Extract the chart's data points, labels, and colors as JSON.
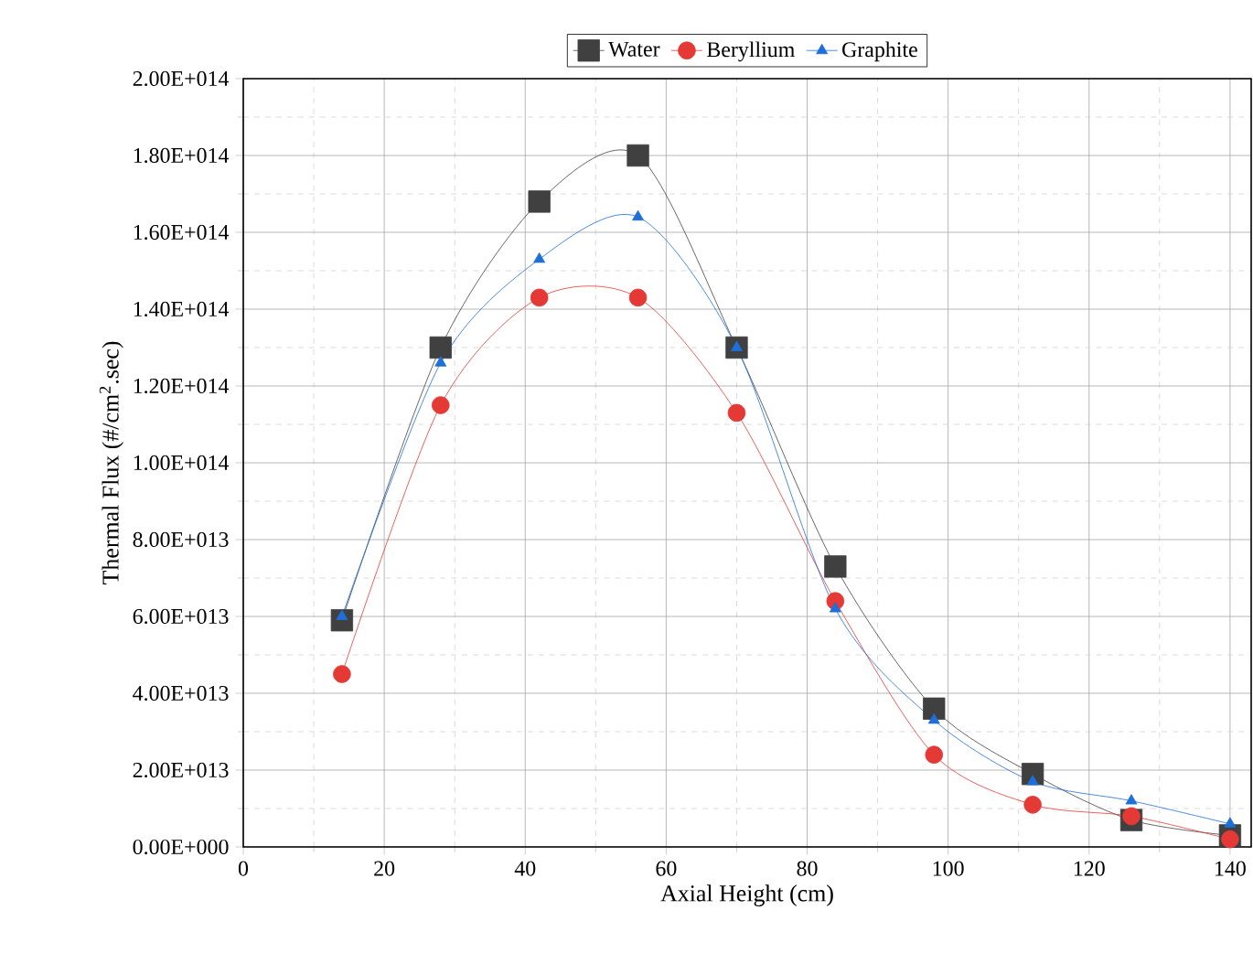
{
  "chart_data": {
    "type": "line",
    "xlabel": "Axial Height (cm)",
    "ylabel": "Thermal Flux (#/cm$^{2}$.sec)",
    "x": [
      14,
      28,
      42,
      56,
      70,
      84,
      98,
      112,
      126,
      140
    ],
    "series": [
      {
        "name": "Water",
        "color": "#404040",
        "marker": "square",
        "values": [
          59000000000000.0,
          130000000000000.0,
          168000000000000.0,
          180000000000000.0,
          130000000000000.0,
          73000000000000.0,
          36000000000000.0,
          19000000000000.0,
          7000000000000.0,
          3000000000000.0
        ]
      },
      {
        "name": "Beryllium",
        "color": "#e53935",
        "marker": "circle",
        "values": [
          45000000000000.0,
          115000000000000.0,
          143000000000000.0,
          143000000000000.0,
          113000000000000.0,
          64000000000000.0,
          24000000000000.0,
          11000000000000.0,
          8000000000000.0,
          2000000000000.0
        ]
      },
      {
        "name": "Graphite",
        "color": "#1e6fd9",
        "marker": "triangle",
        "values": [
          60000000000000.0,
          126000000000000.0,
          153000000000000.0,
          164000000000000.0,
          130000000000000.0,
          62000000000000.0,
          33000000000000.0,
          17000000000000.0,
          12000000000000.0,
          6000000000000.0
        ]
      }
    ],
    "xlim": [
      0,
      143
    ],
    "xticks": [
      0,
      20,
      40,
      60,
      80,
      100,
      120,
      140
    ],
    "ylim": [
      0,
      200000000000000.0
    ],
    "yticks": [
      {
        "value": 0,
        "label": "0.00E+000"
      },
      {
        "value": 20000000000000.0,
        "label": "2.00E+013"
      },
      {
        "value": 40000000000000.0,
        "label": "4.00E+013"
      },
      {
        "value": 60000000000000.0,
        "label": "6.00E+013"
      },
      {
        "value": 80000000000000.0,
        "label": "8.00E+013"
      },
      {
        "value": 100000000000000.0,
        "label": "1.00E+014"
      },
      {
        "value": 120000000000000.0,
        "label": "1.20E+014"
      },
      {
        "value": 140000000000000.0,
        "label": "1.40E+014"
      },
      {
        "value": 160000000000000.0,
        "label": "1.60E+014"
      },
      {
        "value": 180000000000000.0,
        "label": "1.80E+014"
      },
      {
        "value": 200000000000000.0,
        "label": "2.00E+014"
      }
    ],
    "grid": true,
    "legend": "top",
    "line_style": "solid"
  }
}
